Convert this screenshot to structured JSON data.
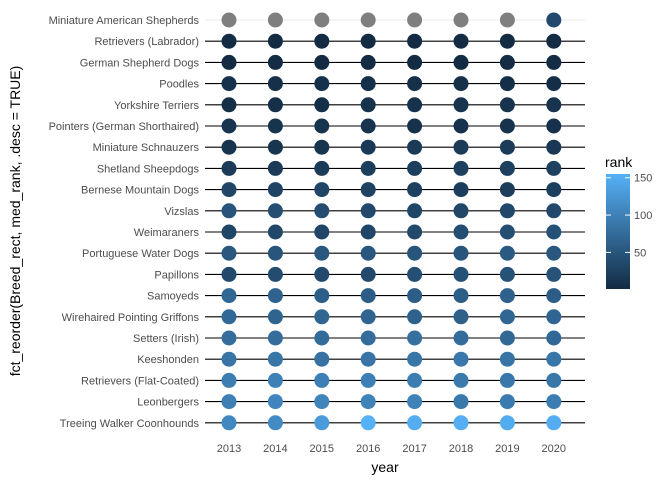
{
  "chart_data": {
    "type": "scatter",
    "title": "",
    "xlabel": "year",
    "ylabel": "fct_reorder(Breed_rect, med_rank, .desc = TRUE)",
    "years": [
      "2013",
      "2014",
      "2015",
      "2016",
      "2017",
      "2018",
      "2019",
      "2020"
    ],
    "breeds": [
      "Miniature American Shepherds",
      "Retrievers (Labrador)",
      "German Shepherd Dogs",
      "Poodles",
      "Yorkshire Terriers",
      "Pointers (German Shorthaired)",
      "Miniature Schnauzers",
      "Shetland Sheepdogs",
      "Bernese Mountain Dogs",
      "Vizslas",
      "Weimaraners",
      "Portuguese Water Dogs",
      "Papillons",
      "Samoyeds",
      "Wirehaired Pointing Griffons",
      "Setters (Irish)",
      "Keeshonden",
      "Retrievers (Flat-Coated)",
      "Leonbergers",
      "Treeing Walker Coonhounds"
    ],
    "ranks": [
      [
        null,
        null,
        null,
        null,
        null,
        null,
        null,
        35
      ],
      [
        1,
        1,
        1,
        1,
        1,
        1,
        1,
        1
      ],
      [
        2,
        2,
        2,
        2,
        2,
        2,
        3,
        3
      ],
      [
        8,
        7,
        8,
        7,
        7,
        7,
        6,
        5
      ],
      [
        6,
        6,
        6,
        9,
        9,
        10,
        10,
        10
      ],
      [
        12,
        11,
        11,
        10,
        8,
        8,
        9,
        8
      ],
      [
        10,
        12,
        12,
        17,
        18,
        19,
        19,
        16
      ],
      [
        19,
        18,
        20,
        23,
        24,
        25,
        25,
        26
      ],
      [
        32,
        29,
        32,
        28,
        25,
        22,
        22,
        24
      ],
      [
        48,
        41,
        40,
        35,
        32,
        33,
        34,
        36
      ],
      [
        32,
        34,
        31,
        31,
        35,
        40,
        41,
        45
      ],
      [
        51,
        49,
        51,
        52,
        49,
        49,
        55,
        51
      ],
      [
        35,
        39,
        37,
        37,
        41,
        45,
        46,
        47
      ],
      [
        70,
        65,
        60,
        58,
        59,
        60,
        63,
        58
      ],
      [
        71,
        66,
        69,
        68,
        64,
        62,
        69,
        68
      ],
      [
        78,
        76,
        75,
        76,
        80,
        77,
        71,
        71
      ],
      [
        86,
        87,
        83,
        86,
        87,
        90,
        86,
        88
      ],
      [
        96,
        100,
        99,
        99,
        96,
        92,
        90,
        88
      ],
      [
        99,
        105,
        104,
        102,
        101,
        91,
        93,
        96
      ],
      [
        108,
        111,
        129,
        155,
        150,
        152,
        149,
        150
      ]
    ],
    "missing_color": "#7f7f7f",
    "color_scale": {
      "low_value": 1,
      "high_value": 155,
      "low_color": "#132b43",
      "high_color": "#56b1f7",
      "breaks": [
        "50",
        "100",
        "150"
      ]
    },
    "legend": {
      "title": "rank",
      "position": "right"
    }
  }
}
